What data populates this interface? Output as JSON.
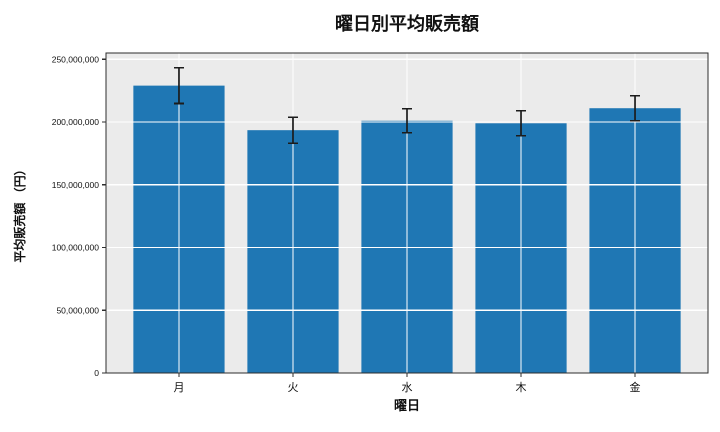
{
  "chart_data": {
    "type": "bar",
    "title": "曜日別平均販売額",
    "xlabel": "曜日",
    "ylabel": "平均販売額 （円）",
    "categories": [
      "月",
      "火",
      "水",
      "木",
      "金"
    ],
    "values": [
      229000000,
      193500000,
      201000000,
      199000000,
      211000000
    ],
    "error_bars": [
      14300000,
      10300000,
      9500000,
      10000000,
      10000000
    ],
    "series": [
      {
        "name": "平均販売額",
        "values": [
          229000000,
          193500000,
          201000000,
          199000000,
          211000000
        ],
        "errors": [
          14300000,
          10300000,
          9500000,
          10000000,
          10000000
        ]
      }
    ],
    "ylim": [
      0,
      255000000
    ],
    "yticks": [
      {
        "value": 0,
        "label": "0"
      },
      {
        "value": 50000000,
        "label": "50,000,000"
      },
      {
        "value": 100000000,
        "label": "100,000,000"
      },
      {
        "value": 150000000,
        "label": "150,000,000"
      },
      {
        "value": 200000000,
        "label": "200,000,000"
      },
      {
        "value": 250000000,
        "label": "250,000,000"
      }
    ],
    "grid": {
      "enabled": true,
      "color": "#ffffff",
      "axes": "both",
      "drawn_over_bars": true
    },
    "legend": "none",
    "bar_color": "#1f77b4",
    "errorbar_color": "#1c1c1c",
    "plot_background": "#ebebeb",
    "figure_background": "#ffffff",
    "spine_color": "#2d2d2d"
  }
}
